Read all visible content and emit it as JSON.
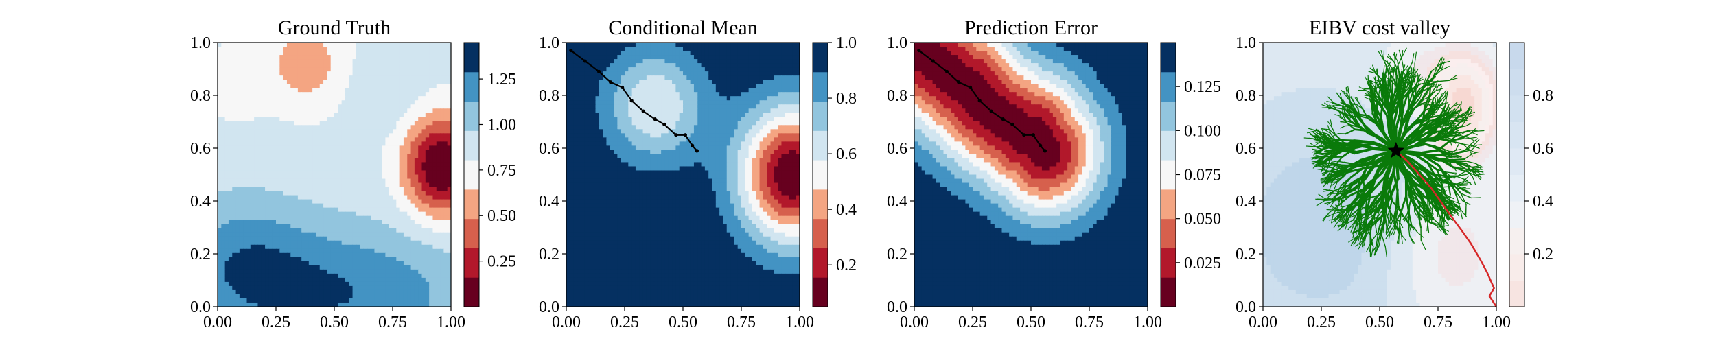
{
  "chart_data": [
    {
      "type": "heatmap",
      "title": "Ground Truth",
      "xlim": [
        0,
        1
      ],
      "ylim": [
        0,
        1
      ],
      "xticks": [
        "0.00",
        "0.25",
        "0.50",
        "0.75",
        "1.00"
      ],
      "yticks": [
        "0.0",
        "0.2",
        "0.4",
        "0.6",
        "0.8",
        "1.0"
      ],
      "colormap": "RdBu",
      "colorbar": {
        "range": [
          0.0,
          1.45
        ],
        "ticks": [
          "0.25",
          "0.50",
          "0.75",
          "1.00",
          "1.25"
        ]
      },
      "field": {
        "base": 0.85,
        "components": [
          {
            "x": 0.96,
            "y": 0.53,
            "sx": 0.11,
            "sy": 0.13,
            "amp": -0.9
          },
          {
            "x": 0.38,
            "y": 0.92,
            "sx": 0.12,
            "sy": 0.12,
            "amp": -0.3
          },
          {
            "x": 0.08,
            "y": 0.85,
            "sx": 0.09,
            "sy": 0.09,
            "amp": -0.18
          },
          {
            "x": 0.55,
            "y": 0.05,
            "sx": 0.4,
            "sy": 0.18,
            "amp": 0.42
          },
          {
            "x": 0.1,
            "y": 0.18,
            "sx": 0.22,
            "sy": 0.18,
            "amp": 0.3
          },
          {
            "x": 0.72,
            "y": 0.82,
            "sx": 0.1,
            "sy": 0.1,
            "amp": 0.12
          }
        ]
      }
    },
    {
      "type": "heatmap",
      "title": "Conditional Mean",
      "xlim": [
        0,
        1
      ],
      "ylim": [
        0,
        1
      ],
      "xticks": [
        "0.00",
        "0.25",
        "0.50",
        "0.75",
        "1.00"
      ],
      "yticks": [
        "0.0",
        "0.2",
        "0.4",
        "0.6",
        "0.8",
        "1.0"
      ],
      "colormap": "RdBu",
      "colorbar": {
        "range": [
          0.05,
          1.0
        ],
        "ticks": [
          "0.2",
          "0.4",
          "0.6",
          "0.8",
          "1.0"
        ]
      },
      "field": {
        "base": 1.0,
        "components": [
          {
            "x": 0.97,
            "y": 0.5,
            "sx": 0.16,
            "sy": 0.18,
            "amp": -0.95
          },
          {
            "x": 0.38,
            "y": 0.76,
            "sx": 0.15,
            "sy": 0.15,
            "amp": -0.42
          }
        ]
      },
      "path": [
        [
          0.02,
          0.97
        ],
        [
          0.08,
          0.93
        ],
        [
          0.14,
          0.89
        ],
        [
          0.19,
          0.85
        ],
        [
          0.24,
          0.83
        ],
        [
          0.28,
          0.78
        ],
        [
          0.33,
          0.74
        ],
        [
          0.38,
          0.71
        ],
        [
          0.42,
          0.69
        ],
        [
          0.47,
          0.65
        ],
        [
          0.51,
          0.65
        ],
        [
          0.54,
          0.61
        ],
        [
          0.56,
          0.59
        ]
      ]
    },
    {
      "type": "heatmap",
      "title": "Prediction Error",
      "xlim": [
        0,
        1
      ],
      "ylim": [
        0,
        1
      ],
      "xticks": [
        "0.00",
        "0.25",
        "0.50",
        "0.75",
        "1.00"
      ],
      "yticks": [
        "0.0",
        "0.2",
        "0.4",
        "0.6",
        "0.8",
        "1.0"
      ],
      "colormap": "RdBu",
      "colorbar": {
        "range": [
          0.0,
          0.15
        ],
        "ticks": [
          "0.025",
          "0.050",
          "0.075",
          "0.100",
          "0.125"
        ]
      },
      "field": {
        "base": 0.15,
        "path_variance": {
          "min": 0.005,
          "max": 0.15,
          "scale": 0.17
        }
      },
      "path": [
        [
          0.02,
          0.97
        ],
        [
          0.08,
          0.93
        ],
        [
          0.14,
          0.89
        ],
        [
          0.19,
          0.85
        ],
        [
          0.24,
          0.83
        ],
        [
          0.28,
          0.78
        ],
        [
          0.33,
          0.74
        ],
        [
          0.38,
          0.71
        ],
        [
          0.42,
          0.69
        ],
        [
          0.47,
          0.65
        ],
        [
          0.51,
          0.65
        ],
        [
          0.54,
          0.61
        ],
        [
          0.56,
          0.59
        ]
      ]
    },
    {
      "type": "heatmap",
      "title": "EIBV cost valley",
      "xlim": [
        0,
        1
      ],
      "ylim": [
        0,
        1
      ],
      "xticks": [
        "0.00",
        "0.25",
        "0.50",
        "0.75",
        "1.00"
      ],
      "yticks": [
        "0.0",
        "0.2",
        "0.4",
        "0.6",
        "0.8",
        "1.0"
      ],
      "colormap": "RdBu",
      "colorbar": {
        "range": [
          0.0,
          1.0
        ],
        "ticks": [
          "0.2",
          "0.4",
          "0.6",
          "0.8"
        ]
      },
      "field": {
        "base": 0.7,
        "components": [
          {
            "x": 0.86,
            "y": 0.76,
            "sx": 0.09,
            "sy": 0.12,
            "amp": -0.55
          },
          {
            "x": 0.66,
            "y": 0.9,
            "sx": 0.12,
            "sy": 0.1,
            "amp": -0.08
          },
          {
            "x": 0.8,
            "y": 0.2,
            "sx": 0.18,
            "sy": 0.2,
            "amp": -0.12
          },
          {
            "x": 0.25,
            "y": 0.3,
            "sx": 0.3,
            "sy": 0.3,
            "amp": 0.12
          }
        ]
      },
      "start_point": [
        0.57,
        0.59
      ],
      "tree": {
        "color": "#0a7a0a",
        "branches": 46
      },
      "selected_path": {
        "color": "#d62728",
        "points": [
          [
            0.57,
            0.59
          ],
          [
            0.62,
            0.55
          ],
          [
            0.67,
            0.5
          ],
          [
            0.72,
            0.45
          ],
          [
            0.76,
            0.4
          ],
          [
            0.8,
            0.35
          ],
          [
            0.85,
            0.29
          ],
          [
            0.89,
            0.24
          ],
          [
            0.93,
            0.18
          ],
          [
            0.96,
            0.13
          ],
          [
            0.99,
            0.07
          ],
          [
            0.97,
            0.04
          ],
          [
            1.0,
            0.0
          ]
        ]
      }
    }
  ]
}
